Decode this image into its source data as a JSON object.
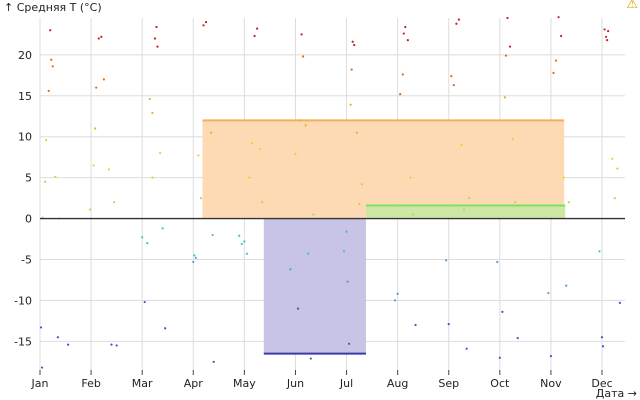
{
  "warning_icon": "warning-icon",
  "chart_data": {
    "type": "scatter",
    "ylabel": "↑ Средняя T (°C)",
    "xlabel": "Дата →",
    "ylim": [
      -18.5,
      24.5
    ],
    "xlim": [
      0,
      11.45
    ],
    "grid": true,
    "categories": [
      "Jan",
      "Feb",
      "Mar",
      "Apr",
      "May",
      "Jun",
      "Jul",
      "Aug",
      "Sep",
      "Oct",
      "Nov",
      "Dec"
    ],
    "y_ticks": [
      -15,
      -10,
      -5,
      0,
      5,
      10,
      15,
      20
    ],
    "zero_line": 0,
    "bands": [
      {
        "x_start": 3.18,
        "x_end": 10.26,
        "y_low": 0,
        "y_high": 12.0,
        "fill": "#fdd8b0",
        "line": "#f0b060"
      },
      {
        "x_start": 4.38,
        "x_end": 6.38,
        "y_low": -16.5,
        "y_high": 0,
        "fill": "#c4c1e4",
        "line": "#3a3aa8"
      },
      {
        "x_start": 6.38,
        "x_end": 10.28,
        "y_low": 0,
        "y_high": 1.6,
        "fill": "#cce8a4",
        "line": "#7ee060"
      }
    ],
    "points": [
      [
        0.02,
        -13.3
      ],
      [
        0.04,
        -18.2
      ],
      [
        0.05,
        0.1
      ],
      [
        0.1,
        4.5
      ],
      [
        0.12,
        9.6
      ],
      [
        0.17,
        15.6
      ],
      [
        0.2,
        23.0
      ],
      [
        0.22,
        19.4
      ],
      [
        0.25,
        18.6
      ],
      [
        0.3,
        5.1
      ],
      [
        0.35,
        -14.5
      ],
      [
        0.38,
        0.0
      ],
      [
        0.55,
        -15.4
      ],
      [
        0.98,
        1.1
      ],
      [
        1.05,
        6.5
      ],
      [
        1.08,
        11.0
      ],
      [
        1.1,
        16.0
      ],
      [
        1.15,
        22.0
      ],
      [
        1.2,
        22.2
      ],
      [
        1.25,
        17.0
      ],
      [
        1.35,
        6.0
      ],
      [
        1.4,
        -15.4
      ],
      [
        1.45,
        2.0
      ],
      [
        1.5,
        -15.5
      ],
      [
        2.0,
        -2.3
      ],
      [
        2.05,
        -10.2
      ],
      [
        2.1,
        -3.0
      ],
      [
        2.15,
        14.6
      ],
      [
        2.2,
        12.9
      ],
      [
        2.2,
        5.0
      ],
      [
        2.25,
        22.0
      ],
      [
        2.28,
        23.4
      ],
      [
        2.3,
        21.0
      ],
      [
        2.35,
        8.0
      ],
      [
        2.4,
        -1.2
      ],
      [
        2.45,
        -13.4
      ],
      [
        3.0,
        -5.3
      ],
      [
        3.02,
        -4.5
      ],
      [
        3.05,
        -4.8
      ],
      [
        3.1,
        7.7
      ],
      [
        3.15,
        2.5
      ],
      [
        3.2,
        23.6
      ],
      [
        3.25,
        24.0
      ],
      [
        3.35,
        10.5
      ],
      [
        3.38,
        -2.0
      ],
      [
        3.4,
        -17.5
      ],
      [
        3.9,
        -2.1
      ],
      [
        3.95,
        -3.1
      ],
      [
        4.0,
        -2.8
      ],
      [
        4.05,
        -4.3
      ],
      [
        4.1,
        5.0
      ],
      [
        4.15,
        9.2
      ],
      [
        4.2,
        22.3
      ],
      [
        4.25,
        23.2
      ],
      [
        4.3,
        8.5
      ],
      [
        4.35,
        2.0
      ],
      [
        4.9,
        -6.2
      ],
      [
        5.0,
        7.9
      ],
      [
        5.05,
        -11.0
      ],
      [
        5.1,
        12.0
      ],
      [
        5.12,
        22.5
      ],
      [
        5.15,
        19.8
      ],
      [
        5.2,
        11.4
      ],
      [
        5.25,
        -4.3
      ],
      [
        5.3,
        -17.1
      ],
      [
        5.35,
        0.5
      ],
      [
        5.95,
        -4.0
      ],
      [
        6.0,
        -1.6
      ],
      [
        6.02,
        -7.7
      ],
      [
        6.05,
        -15.3
      ],
      [
        6.08,
        13.9
      ],
      [
        6.1,
        18.2
      ],
      [
        6.12,
        21.6
      ],
      [
        6.15,
        21.2
      ],
      [
        6.2,
        10.5
      ],
      [
        6.25,
        1.8
      ],
      [
        6.3,
        4.2
      ],
      [
        6.95,
        -10.0
      ],
      [
        7.0,
        -9.2
      ],
      [
        7.05,
        15.2
      ],
      [
        7.1,
        17.6
      ],
      [
        7.12,
        22.6
      ],
      [
        7.15,
        23.4
      ],
      [
        7.2,
        21.8
      ],
      [
        7.25,
        5.0
      ],
      [
        7.3,
        0.5
      ],
      [
        7.35,
        -13.0
      ],
      [
        7.95,
        -5.1
      ],
      [
        8.0,
        -12.9
      ],
      [
        8.05,
        17.4
      ],
      [
        8.1,
        16.3
      ],
      [
        8.15,
        23.8
      ],
      [
        8.2,
        24.3
      ],
      [
        8.25,
        9.0
      ],
      [
        8.3,
        1.1
      ],
      [
        8.35,
        -15.9
      ],
      [
        8.4,
        2.5
      ],
      [
        8.95,
        -5.3
      ],
      [
        9.0,
        -17.0
      ],
      [
        9.05,
        -11.4
      ],
      [
        9.1,
        14.8
      ],
      [
        9.12,
        19.9
      ],
      [
        9.15,
        24.5
      ],
      [
        9.2,
        21.0
      ],
      [
        9.25,
        9.7
      ],
      [
        9.3,
        2.0
      ],
      [
        9.35,
        -14.6
      ],
      [
        9.95,
        -9.1
      ],
      [
        10.0,
        -16.8
      ],
      [
        10.05,
        17.8
      ],
      [
        10.1,
        19.3
      ],
      [
        10.15,
        24.6
      ],
      [
        10.2,
        22.3
      ],
      [
        10.25,
        5.0
      ],
      [
        10.3,
        -8.2
      ],
      [
        10.35,
        2.0
      ],
      [
        10.95,
        -4.0
      ],
      [
        11.0,
        -14.5
      ],
      [
        11.02,
        -15.6
      ],
      [
        11.05,
        23.1
      ],
      [
        11.08,
        22.2
      ],
      [
        11.1,
        21.8
      ],
      [
        11.12,
        22.9
      ],
      [
        11.2,
        7.3
      ],
      [
        11.25,
        2.5
      ],
      [
        11.3,
        6.1
      ],
      [
        11.35,
        -10.3
      ]
    ]
  }
}
